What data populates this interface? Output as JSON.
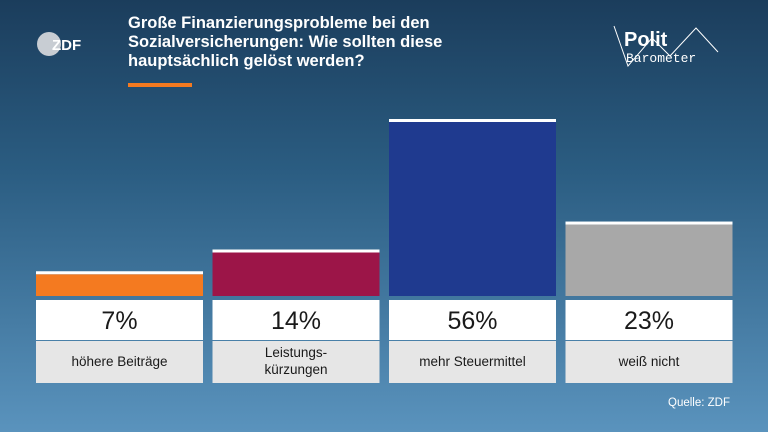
{
  "header": {
    "title": "Große Finanzierungsprobleme bei den Sozialversicherungen: Wie sollten diese hauptsächlich gelöst werden?",
    "logo_left_text": "ZDF",
    "logo_right_line1": "Polit",
    "logo_right_line2": "Barometer",
    "accent_color": "#f47a20"
  },
  "footer": {
    "source": "Quelle: ZDF"
  },
  "chart_data": {
    "type": "bar",
    "categories": [
      "höhere Beiträge",
      "Leistungs-\nkürzungen",
      "mehr Steuermittel",
      "weiß nicht"
    ],
    "values": [
      7,
      14,
      56,
      23
    ],
    "value_labels": [
      "7%",
      "14%",
      "56%",
      "23%"
    ],
    "colors": [
      "#f47a20",
      "#9c1548",
      "#1f3a8f",
      "#a8a8a8"
    ],
    "unit": "%",
    "title": "",
    "xlabel": "",
    "ylabel": "",
    "ylim": [
      0,
      56
    ],
    "grid": false,
    "legend": "none"
  }
}
